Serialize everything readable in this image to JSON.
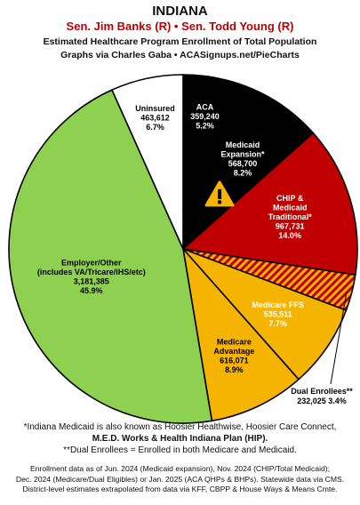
{
  "header": {
    "title": "INDIANA",
    "senators": "Sen. Jim Banks (R) • Sen. Todd Young (R)",
    "subtitle": "Estimated Healthcare Program Enrollment of Total Population",
    "credit": "Graphs via Charles Gaba  •  ACASignups.net/PieCharts"
  },
  "chart_data": {
    "type": "pie",
    "slices": [
      {
        "lines": [
          "ACA",
          "359,240",
          "5.2%"
        ],
        "value": 359240,
        "percent": 5.2,
        "color": "#000000",
        "text_color": "#ffffff"
      },
      {
        "lines": [
          "Medicaid",
          "Expansion*",
          "568,700",
          "8.2%"
        ],
        "value": 568700,
        "percent": 8.2,
        "color": "#000000",
        "text_color": "#ffffff",
        "icon": "warning-icon",
        "icon_color": "#f5b400"
      },
      {
        "lines": [
          "CHIP &",
          "Medicaid",
          "Traditional*",
          "967,731",
          "14.0%"
        ],
        "value": 967731,
        "percent": 14.0,
        "color": "#c00000",
        "text_color": "#ffffff"
      },
      {
        "lines": [],
        "value": 232025,
        "percent": 3.4,
        "color": "#c00000",
        "hatch": "#f5b400"
      },
      {
        "lines": [
          "Medicare FFS",
          "535,511",
          "7.7%"
        ],
        "value": 535511,
        "percent": 7.7,
        "color": "#f5b400",
        "text_color": "#ffffff"
      },
      {
        "lines": [
          "Medicare",
          "Advantage",
          "616,071",
          "8.9%"
        ],
        "value": 616071,
        "percent": 8.9,
        "color": "#f5b400",
        "text_color": "#000000"
      },
      {
        "lines": [
          "Employer/Other",
          "(includes VA/Tricare/IHS/etc)",
          "3,181,385",
          "45.9%"
        ],
        "value": 3181385,
        "percent": 45.9,
        "color": "#8ed150",
        "text_color": "#000000"
      },
      {
        "lines": [
          "Uninsured",
          "463,612",
          "6.7%"
        ],
        "value": 463612,
        "percent": 6.7,
        "color": "#ffffff",
        "text_color": "#000000"
      }
    ],
    "callout": {
      "lines": [
        "Dual Enrollees**",
        "232,025 3.4%"
      ]
    }
  },
  "notes": {
    "line1": "*Indiana Medicaid is also known as Hoosier Healthwise, Hoosier Care Connect,",
    "line2": "M.E.D. Works & Health Indiana Plan (HIP).",
    "line3": "**Dual Enrollees = Enrolled in both Medicare and Medicaid."
  },
  "footer": {
    "line1": "Enrollment data as of Jun. 2024 (Medicaid expansion), Nov. 2024 (CHIP/Total Medicaid);",
    "line2": "Dec. 2024 (Medicare/Dual Eligibles) or Jan. 2025 (ACA QHPs & BHPs). Statewide data via CMS.",
    "line3": "District-level estimates extrapolated from data via KFF, CBPP & House Ways & Means Cmte."
  }
}
